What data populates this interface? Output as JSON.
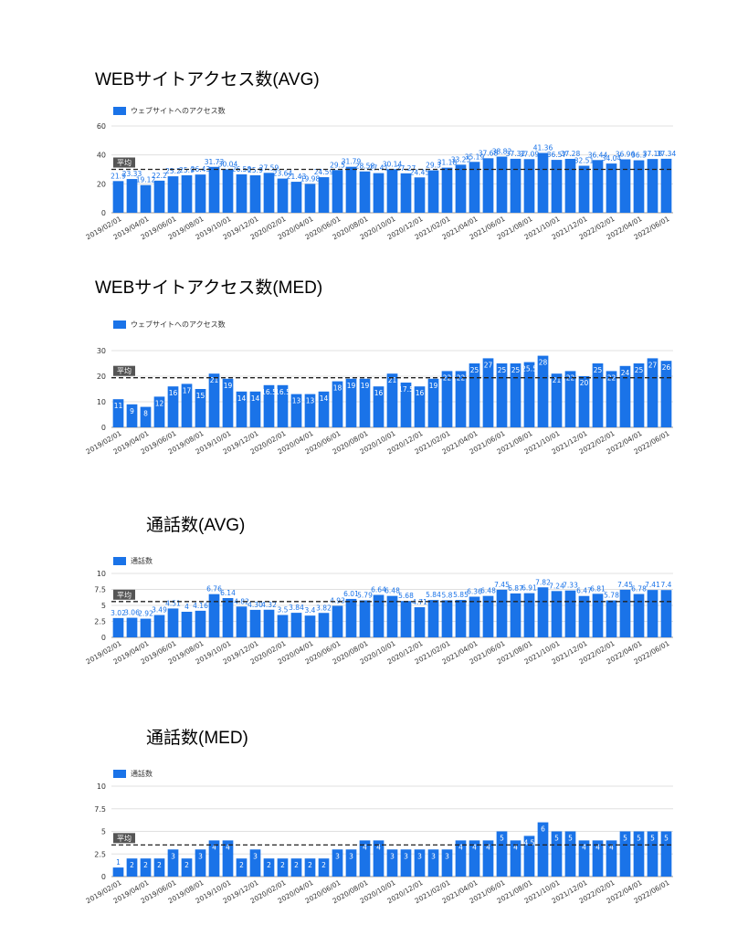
{
  "colors": {
    "bar": "#1a73e8",
    "label": "#1a73e8",
    "grid": "#e0e0e0",
    "avg_line": "#222222",
    "avg_tag_bg": "#555555",
    "avg_tag_fg": "#ffffff"
  },
  "panels": [
    {
      "title": "WEBサイトアクセス数(AVG)",
      "legend": "ウェブサイトへのアクセス数",
      "avg_tag": "平均"
    },
    {
      "title": "WEBサイトアクセス数(MED)",
      "legend": "ウェブサイトへのアクセス数",
      "avg_tag": "平均"
    },
    {
      "title": "通話数(AVG)",
      "legend": "通話数",
      "avg_tag": "平均"
    },
    {
      "title": "通話数(MED)",
      "legend": "通話数",
      "avg_tag": "平均"
    }
  ],
  "chart_data": [
    {
      "type": "bar",
      "title": "WEBサイトアクセス数(AVG)",
      "series": [
        {
          "name": "ウェブサイトへのアクセス数",
          "values": [
            21.9,
            23.33,
            19.12,
            22.2,
            25.2,
            25.9,
            26.43,
            31.73,
            30.04,
            26.58,
            25.9,
            27.59,
            23.64,
            21.43,
            19.98,
            24.59,
            29.5,
            31.79,
            28.58,
            27.41,
            30.14,
            27.27,
            24.45,
            29.3,
            31.18,
            33.25,
            35.19,
            37.68,
            38.82,
            37.32,
            37.09,
            41.36,
            36.57,
            37.28,
            32.51,
            36.44,
            34.04,
            36.96,
            36.3,
            37.18,
            37.34
          ]
        }
      ],
      "labels": [
        "21.9",
        "23.33",
        "19.12",
        "22.2",
        "25.2",
        "25.9",
        "26.43",
        "31.73",
        "30.04",
        "26.58",
        "25.9",
        "27.59",
        "23.64",
        "21.43",
        "19.98",
        "24.59",
        "29.5",
        "31.79",
        "28.58",
        "27.41",
        "30.14",
        "27.27",
        "24.45",
        "29.3",
        "31.18",
        "33.25",
        "35.19",
        "37.68",
        "38.82",
        "37.32",
        "37.09",
        "41.36",
        "36.57",
        "37.28",
        "32.51",
        "36.44",
        "34.04",
        "36.96",
        "36.3",
        "37.18",
        "37.34"
      ],
      "average": 30,
      "ylim": [
        0,
        60
      ],
      "yticks": [
        "0",
        "20",
        "40",
        "60"
      ],
      "xticks": [
        "2019/02/01",
        "2019/04/01",
        "2019/06/01",
        "2019/08/01",
        "2019/10/01",
        "2019/12/01",
        "2020/02/01",
        "2020/04/01",
        "2020/06/01",
        "2020/08/01",
        "2020/10/01",
        "2020/12/01",
        "2021/02/01",
        "2021/04/01",
        "2021/06/01",
        "2021/08/01",
        "2021/10/01",
        "2021/12/01",
        "2022/02/01",
        "2022/04/01",
        "2022/06/01"
      ],
      "grid": true
    },
    {
      "type": "bar",
      "title": "WEBサイトアクセス数(MED)",
      "series": [
        {
          "name": "ウェブサイトへのアクセス数",
          "values": [
            11,
            9,
            8,
            12,
            16,
            17,
            15,
            21,
            19,
            14,
            14,
            16.5,
            16.5,
            13,
            13,
            14,
            18,
            19,
            19,
            16,
            21,
            17.5,
            16,
            19,
            22,
            22,
            25,
            27,
            25,
            25,
            25.5,
            28,
            21,
            22,
            20,
            25,
            22,
            24,
            25,
            27,
            26
          ]
        }
      ],
      "labels": [
        "11",
        "9",
        "8",
        "12",
        "16",
        "17",
        "15",
        "21",
        "19",
        "14",
        "14",
        "16.5",
        "16.5",
        "13",
        "13",
        "14",
        "18",
        "19",
        "19",
        "16",
        "21",
        "17.5",
        "16",
        "19",
        "22",
        "22",
        "25",
        "27",
        "25",
        "25",
        "25.5",
        "28",
        "21",
        "22",
        "20",
        "25",
        "22",
        "24",
        "25",
        "27",
        "26"
      ],
      "average": 19.4,
      "ylim": [
        0,
        30
      ],
      "yticks": [
        "0",
        "10",
        "20",
        "30"
      ],
      "xticks": [
        "2019/02/01",
        "2019/04/01",
        "2019/06/01",
        "2019/08/01",
        "2019/10/01",
        "2019/12/01",
        "2020/02/01",
        "2020/04/01",
        "2020/06/01",
        "2020/08/01",
        "2020/10/01",
        "2020/12/01",
        "2021/02/01",
        "2021/04/01",
        "2021/06/01",
        "2021/08/01",
        "2021/10/01",
        "2021/12/01",
        "2022/02/01",
        "2022/04/01",
        "2022/06/01"
      ],
      "grid": true
    },
    {
      "type": "bar",
      "title": "通話数(AVG)",
      "series": [
        {
          "name": "通話数",
          "values": [
            3.02,
            3.06,
            2.92,
            3.49,
            4.51,
            4,
            4.16,
            6.76,
            6.14,
            4.82,
            4.3,
            4.32,
            3.5,
            3.84,
            3.4,
            3.82,
            4.93,
            6.01,
            5.79,
            6.64,
            6.48,
            5.68,
            4.71,
            5.84,
            5.8,
            5.85,
            6.36,
            6.48,
            7.45,
            6.87,
            6.91,
            7.82,
            7.24,
            7.33,
            6.47,
            6.81,
            5.78,
            7.45,
            6.78,
            7.41,
            7.4
          ]
        }
      ],
      "labels": [
        "3.02",
        "3.06",
        "2.92",
        "3.49",
        "4.51",
        "4",
        "4.16",
        "6.76",
        "6.14",
        "4.82",
        "4.30",
        "4.32",
        "3.5",
        "3.84",
        "3.4",
        "3.82",
        "4.93",
        "6.01",
        "5.79",
        "6.64",
        "6.48",
        "5.68",
        "4.71",
        "5.84",
        "5.8",
        "5.85",
        "6.36",
        "6.48",
        "7.45",
        "6.87",
        "6.91",
        "7.82",
        "7.24",
        "7.33",
        "6.47",
        "6.81",
        "5.78",
        "7.45",
        "6.78",
        "7.41",
        "7.4"
      ],
      "average": 5.6,
      "ylim": [
        0,
        10
      ],
      "yticks": [
        "0",
        "2.5",
        "5",
        "7.5",
        "10"
      ],
      "xticks": [
        "2019/02/01",
        "2019/04/01",
        "2019/06/01",
        "2019/08/01",
        "2019/10/01",
        "2019/12/01",
        "2020/02/01",
        "2020/04/01",
        "2020/06/01",
        "2020/08/01",
        "2020/10/01",
        "2020/12/01",
        "2021/02/01",
        "2021/04/01",
        "2021/06/01",
        "2021/08/01",
        "2021/10/01",
        "2021/12/01",
        "2022/02/01",
        "2022/04/01",
        "2022/06/01"
      ],
      "grid": true
    },
    {
      "type": "bar",
      "title": "通話数(MED)",
      "series": [
        {
          "name": "通話数",
          "values": [
            1,
            2,
            2,
            2,
            3,
            2,
            3,
            4,
            4,
            2,
            3,
            2,
            2,
            2,
            2,
            2,
            3,
            3,
            4,
            4,
            3,
            3,
            3,
            3,
            3,
            4,
            4,
            4,
            5,
            4,
            4.5,
            6,
            5,
            5,
            4,
            4,
            4,
            5,
            5,
            5,
            5
          ]
        }
      ],
      "labels": [
        "1",
        "2",
        "2",
        "2",
        "3",
        "2",
        "3",
        "4",
        "4",
        "2",
        "3",
        "2",
        "2",
        "2",
        "2",
        "2",
        "3",
        "3",
        "4",
        "4",
        "3",
        "3",
        "3",
        "3",
        "3",
        "4",
        "4",
        "4",
        "5",
        "4",
        "4.5",
        "6",
        "5",
        "5",
        "4",
        "4",
        "4",
        "5",
        "5",
        "5",
        "5"
      ],
      "average": 3.5,
      "ylim": [
        0,
        10
      ],
      "yticks": [
        "0",
        "2.5",
        "5",
        "7.5",
        "10"
      ],
      "xticks": [
        "2019/02/01",
        "2019/04/01",
        "2019/06/01",
        "2019/08/01",
        "2019/10/01",
        "2019/12/01",
        "2020/02/01",
        "2020/04/01",
        "2020/06/01",
        "2020/08/01",
        "2020/10/01",
        "2020/12/01",
        "2021/02/01",
        "2021/04/01",
        "2021/06/01",
        "2021/08/01",
        "2021/10/01",
        "2021/12/01",
        "2022/02/01",
        "2022/04/01",
        "2022/06/01"
      ],
      "grid": true
    }
  ]
}
